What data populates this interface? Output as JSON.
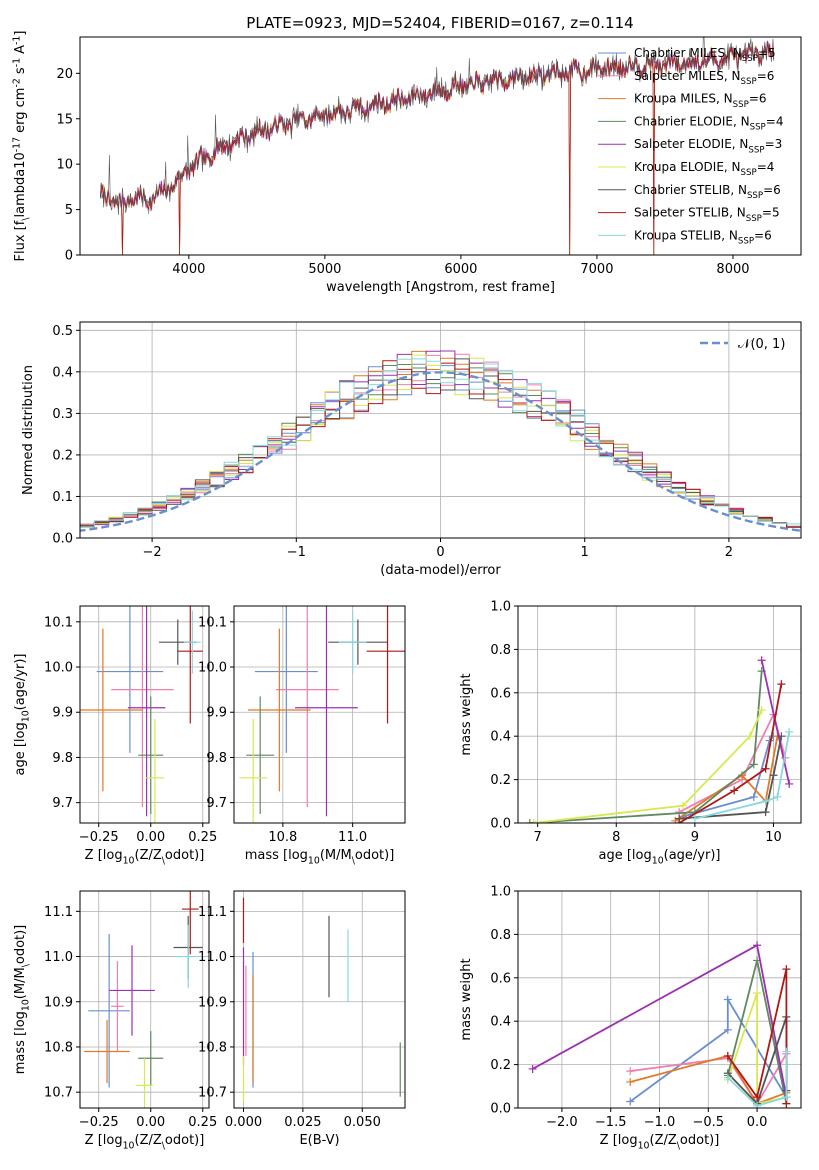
{
  "figure": {
    "suptitle": "PLATE=0923, MJD=52404, FIBERID=0167, z=0.114"
  },
  "models": [
    {
      "name": "Chabrier MILES, N$_{SSP}$=5",
      "label_html": "Chabrier MILES, N<sub>SSP</sub>=5",
      "color": "#6a8fd0"
    },
    {
      "name": "Salpeter MILES, N$_{SSP}$=6",
      "label_html": "Salpeter MILES, N<sub>SSP</sub>=6",
      "color": "#f07fb0"
    },
    {
      "name": "Kroupa MILES, N$_{SSP}$=6",
      "label_html": "Kroupa MILES, N<sub>SSP</sub>=6",
      "color": "#e07b28"
    },
    {
      "name": "Chabrier ELODIE, N$_{SSP}$=4",
      "label_html": "Chabrier ELODIE, N<sub>SSP</sub>=4",
      "color": "#5f8a5f"
    },
    {
      "name": "Salpeter ELODIE, N$_{SSP}$=3",
      "label_html": "Salpeter ELODIE, N<sub>SSP</sub>=3",
      "color": "#9b30b0"
    },
    {
      "name": "Kroupa ELODIE, N$_{SSP}$=4",
      "label_html": "Kroupa ELODIE, N<sub>SSP</sub>=4",
      "color": "#d8e850"
    },
    {
      "name": "Chabrier STELIB, N$_{SSP}$=6",
      "label_html": "Chabrier STELIB, N<sub>SSP</sub>=6",
      "color": "#555555"
    },
    {
      "name": "Salpeter STELIB, N$_{SSP}$=5",
      "label_html": "Salpeter STELIB, N<sub>SSP</sub>=5",
      "color": "#b01818"
    },
    {
      "name": "Kroupa STELIB, N$_{SSP}$=6",
      "label_html": "Kroupa STELIB, N<sub>SSP</sub>=6",
      "color": "#88d8e0"
    }
  ],
  "chart_data": [
    {
      "id": "spectrum",
      "type": "line",
      "title": "",
      "xlabel": "wavelength [Angstrom, rest frame]",
      "ylabel": "Flux [f$_\\lambda$10$^{-17}$ erg cm$^{-2}$ s$^{-1}$ A$^{-1}$]",
      "xlim": [
        3200,
        8500
      ],
      "ylim": [
        0,
        24
      ],
      "xticks": [
        4000,
        5000,
        6000,
        7000,
        8000
      ],
      "yticks": [
        0,
        5,
        10,
        15,
        20
      ],
      "grid": false,
      "legend": "upper right",
      "x_range": [
        3350,
        8300
      ],
      "anchors": [
        [
          3350,
          6.6
        ],
        [
          3500,
          5.6
        ],
        [
          3600,
          6.4
        ],
        [
          3700,
          6.0
        ],
        [
          3800,
          6.8
        ],
        [
          3900,
          8.0
        ],
        [
          4000,
          9.5
        ],
        [
          4200,
          11.5
        ],
        [
          4400,
          13.0
        ],
        [
          4600,
          14.0
        ],
        [
          4800,
          14.8
        ],
        [
          5000,
          15.4
        ],
        [
          5300,
          16.3
        ],
        [
          5600,
          17.3
        ],
        [
          6000,
          18.6
        ],
        [
          6400,
          19.5
        ],
        [
          6800,
          20.2
        ],
        [
          7200,
          20.8
        ],
        [
          7600,
          21.1
        ],
        [
          8000,
          21.7
        ],
        [
          8300,
          22.4
        ]
      ],
      "dips": [
        [
          3510,
          0
        ],
        [
          3930,
          0
        ],
        [
          6800,
          0
        ],
        [
          7420,
          0
        ]
      ]
    },
    {
      "id": "residuals",
      "type": "line",
      "title": "",
      "xlabel": "(data-model)/error",
      "ylabel": "Normed distribution",
      "xlim": [
        -2.5,
        2.5
      ],
      "ylim": [
        0,
        0.52
      ],
      "xticks": [
        -2,
        -1,
        0,
        1,
        2
      ],
      "yticks": [
        0.0,
        0.1,
        0.2,
        0.3,
        0.4,
        0.5
      ],
      "grid": true,
      "legend": "upper right",
      "reference": {
        "name": "$\\mathcal{N}(0,1)$",
        "label_html": "<tspan font-style=\"italic\">𝒩</tspan>(0, 1)",
        "color": "#6a8fd0",
        "mean": 0,
        "sigma": 1
      }
    },
    {
      "id": "age_vs_Z",
      "type": "scatter",
      "xlabel": "Z [log$_{10}$(Z/Z$_\\odot$)]",
      "ylabel": "age  [log$_{10}$(age/yr)]",
      "xlim": [
        -0.34,
        0.28
      ],
      "ylim": [
        9.655,
        10.135
      ],
      "xticks": [
        -0.25,
        0.0,
        0.25
      ],
      "yticks": [
        9.7,
        9.8,
        9.9,
        10.0,
        10.1
      ],
      "grid": true,
      "points": [
        {
          "model": 0,
          "x": -0.1,
          "xerr": 0.16,
          "y": 9.99,
          "yerr": 0.18
        },
        {
          "model": 1,
          "x": -0.04,
          "xerr": 0.15,
          "y": 9.95,
          "yerr": 0.26
        },
        {
          "model": 2,
          "x": -0.23,
          "xerr": 0.19,
          "y": 9.905,
          "yerr": 0.18
        },
        {
          "model": 3,
          "x": 0.0,
          "xerr": 0.06,
          "y": 9.805,
          "yerr": 0.13
        },
        {
          "model": 4,
          "x": -0.02,
          "xerr": 0.09,
          "y": 9.91,
          "yerr": 0.24
        },
        {
          "model": 5,
          "x": 0.02,
          "xerr": 0.045,
          "y": 9.755,
          "yerr": 0.13
        },
        {
          "model": 6,
          "x": 0.13,
          "xerr": 0.09,
          "y": 10.055,
          "yerr": 0.05
        },
        {
          "model": 7,
          "x": 0.19,
          "xerr": 0.06,
          "y": 10.035,
          "yerr": 0.16
        },
        {
          "model": 8,
          "x": 0.2,
          "xerr": 0.04,
          "y": 10.055,
          "yerr": 0.07
        }
      ]
    },
    {
      "id": "age_vs_mass",
      "type": "scatter",
      "xlabel": "mass [log$_{10}$(M/M$_\\odot$)]",
      "ylabel": "",
      "xlim": [
        10.66,
        11.15
      ],
      "ylim": [
        9.655,
        10.135
      ],
      "xticks": [
        10.8,
        11.0
      ],
      "yticks": [
        9.7,
        9.8,
        9.9,
        10.0,
        10.1
      ],
      "grid": true,
      "points": [
        {
          "model": 0,
          "x": 10.81,
          "xerr": 0.09,
          "y": 9.99,
          "yerr": 0.18
        },
        {
          "model": 1,
          "x": 10.87,
          "xerr": 0.09,
          "y": 9.95,
          "yerr": 0.26
        },
        {
          "model": 2,
          "x": 10.79,
          "xerr": 0.09,
          "y": 9.905,
          "yerr": 0.18
        },
        {
          "model": 3,
          "x": 10.735,
          "xerr": 0.04,
          "y": 9.805,
          "yerr": 0.13
        },
        {
          "model": 4,
          "x": 10.925,
          "xerr": 0.09,
          "y": 9.91,
          "yerr": 0.24
        },
        {
          "model": 5,
          "x": 10.715,
          "xerr": 0.04,
          "y": 9.755,
          "yerr": 0.13
        },
        {
          "model": 6,
          "x": 11.015,
          "xerr": 0.085,
          "y": 10.055,
          "yerr": 0.05
        },
        {
          "model": 7,
          "x": 11.1,
          "xerr": 0.06,
          "y": 10.035,
          "yerr": 0.16
        },
        {
          "model": 8,
          "x": 11.0,
          "xerr": 0.04,
          "y": 10.055,
          "yerr": 0.07
        }
      ]
    },
    {
      "id": "weight_vs_age",
      "type": "line",
      "xlabel": "age  [log$_{10}$(age/yr)]",
      "ylabel": "mass weight",
      "xlim": [
        6.75,
        10.35
      ],
      "ylim": [
        0.0,
        1.0
      ],
      "xticks": [
        7,
        8,
        9,
        10
      ],
      "yticks": [
        0.0,
        0.2,
        0.4,
        0.6,
        0.8,
        1.0
      ],
      "grid": true,
      "series": [
        {
          "model": 0,
          "x": [
            8.85,
            9.75,
            9.95,
            10.0
          ],
          "y": [
            0.03,
            0.12,
            0.38,
            0.4
          ]
        },
        {
          "model": 1,
          "x": [
            8.8,
            9.6,
            10.0,
            10.15
          ],
          "y": [
            0.05,
            0.2,
            0.5,
            0.3
          ]
        },
        {
          "model": 2,
          "x": [
            8.75,
            9.6,
            9.9,
            10.05
          ],
          "y": [
            0.01,
            0.22,
            0.1,
            0.4
          ]
        },
        {
          "model": 3,
          "x": [
            6.9,
            9.0,
            9.75,
            9.85
          ],
          "y": [
            0.0,
            0.05,
            0.27,
            0.7
          ]
        },
        {
          "model": 4,
          "x": [
            9.85,
            10.2
          ],
          "y": [
            0.75,
            0.18
          ]
        },
        {
          "model": 5,
          "x": [
            6.95,
            8.85,
            9.7,
            9.85
          ],
          "y": [
            0.0,
            0.08,
            0.4,
            0.52
          ]
        },
        {
          "model": 6,
          "x": [
            8.8,
            9.9,
            10.0,
            10.1
          ],
          "y": [
            0.02,
            0.05,
            0.22,
            0.4
          ]
        },
        {
          "model": 7,
          "x": [
            8.8,
            9.5,
            9.9,
            10.1
          ],
          "y": [
            0.0,
            0.15,
            0.25,
            0.64
          ]
        },
        {
          "model": 8,
          "x": [
            9.0,
            9.9,
            10.05,
            10.2
          ],
          "y": [
            0.02,
            0.1,
            0.12,
            0.42
          ]
        }
      ]
    },
    {
      "id": "mass_vs_Z",
      "type": "scatter",
      "xlabel": "Z [log$_{10}$(Z/Z$_\\odot$)]",
      "ylabel": "mass [log$_{10}$(M/M$_\\odot$)]",
      "xlim": [
        -0.34,
        0.28
      ],
      "ylim": [
        10.665,
        11.145
      ],
      "xticks": [
        -0.25,
        0.0,
        0.25
      ],
      "yticks": [
        10.7,
        10.8,
        10.9,
        11.0,
        11.1
      ],
      "grid": true,
      "points": [
        {
          "model": 0,
          "x": -0.2,
          "xerr": 0.1,
          "y": 10.88,
          "yerr": 0.17
        },
        {
          "model": 1,
          "x": -0.16,
          "xerr": 0.03,
          "y": 10.89,
          "yerr": 0.1
        },
        {
          "model": 2,
          "x": -0.21,
          "xerr": 0.11,
          "y": 10.79,
          "yerr": 0.07
        },
        {
          "model": 3,
          "x": 0.0,
          "xerr": 0.06,
          "y": 10.775,
          "yerr": 0.06
        },
        {
          "model": 4,
          "x": -0.09,
          "xerr": 0.11,
          "y": 10.925,
          "yerr": 0.1
        },
        {
          "model": 5,
          "x": -0.03,
          "xerr": 0.04,
          "y": 10.715,
          "yerr": 0.06
        },
        {
          "model": 6,
          "x": 0.18,
          "xerr": 0.07,
          "y": 11.02,
          "yerr": 0.07
        },
        {
          "model": 7,
          "x": 0.19,
          "xerr": 0.04,
          "y": 11.105,
          "yerr": 0.1
        },
        {
          "model": 8,
          "x": 0.18,
          "xerr": 0.06,
          "y": 11.0,
          "yerr": 0.07
        }
      ]
    },
    {
      "id": "mass_vs_EBV",
      "type": "scatter",
      "xlabel": "E(B-V)",
      "ylabel": "",
      "xlim": [
        -0.004,
        0.068
      ],
      "ylim": [
        10.665,
        11.145
      ],
      "xticks": [
        0.0,
        0.025,
        0.05
      ],
      "yticks": [
        10.7,
        10.8,
        10.9,
        11.0,
        11.1
      ],
      "xtick_labels": [
        "0.000",
        "0.025",
        "0.050"
      ],
      "grid": true,
      "points": [
        {
          "model": 0,
          "x": 0.004,
          "xerr": 0,
          "y": 10.86,
          "yerr": 0.15
        },
        {
          "model": 1,
          "x": 0.001,
          "xerr": 0,
          "y": 10.88,
          "yerr": 0.1
        },
        {
          "model": 2,
          "x": 0.004,
          "xerr": 0,
          "y": 10.84,
          "yerr": 0.12
        },
        {
          "model": 3,
          "x": 0.066,
          "xerr": 0,
          "y": 10.75,
          "yerr": 0.06
        },
        {
          "model": 4,
          "x": 0.0,
          "xerr": 0,
          "y": 10.89,
          "yerr": 0.13
        },
        {
          "model": 5,
          "x": 0.0,
          "xerr": 0,
          "y": 10.73,
          "yerr": 0.05
        },
        {
          "model": 6,
          "x": 0.036,
          "xerr": 0,
          "y": 11.0,
          "yerr": 0.09
        },
        {
          "model": 7,
          "x": 0.0,
          "xerr": 0,
          "y": 11.08,
          "yerr": 0.05
        },
        {
          "model": 8,
          "x": 0.044,
          "xerr": 0,
          "y": 10.98,
          "yerr": 0.08
        }
      ]
    },
    {
      "id": "weight_vs_Z",
      "type": "line",
      "xlabel": "Z [log$_{10}$(Z/Z$_\\odot$)]",
      "ylabel": "mass weight",
      "xlim": [
        -2.45,
        0.45
      ],
      "ylim": [
        0.0,
        1.0
      ],
      "xticks": [
        -2.0,
        -1.5,
        -1.0,
        -0.5,
        0.0
      ],
      "yticks": [
        0.0,
        0.2,
        0.4,
        0.6,
        0.8,
        1.0
      ],
      "grid": true,
      "series": [
        {
          "model": 0,
          "x": [
            -1.3,
            -0.3,
            -0.3,
            0.3,
            0.3
          ],
          "y": [
            0.03,
            0.36,
            0.5,
            0.05,
            0.4
          ]
        },
        {
          "model": 1,
          "x": [
            -1.3,
            -0.3,
            0.0,
            0.3
          ],
          "y": [
            0.17,
            0.23,
            0.02,
            0.25
          ]
        },
        {
          "model": 2,
          "x": [
            -1.3,
            -0.3,
            0.0,
            0.3
          ],
          "y": [
            0.12,
            0.24,
            0.02,
            0.07
          ]
        },
        {
          "model": 3,
          "x": [
            -0.3,
            0.0,
            0.3
          ],
          "y": [
            0.15,
            0.68,
            0.02
          ]
        },
        {
          "model": 4,
          "x": [
            -2.3,
            0.0,
            0.3
          ],
          "y": [
            0.18,
            0.75,
            0.05
          ]
        },
        {
          "model": 5,
          "x": [
            -0.3,
            0.0,
            0.0,
            0.3
          ],
          "y": [
            0.13,
            0.53,
            0.02,
            0.05
          ]
        },
        {
          "model": 6,
          "x": [
            -0.3,
            0.0,
            0.3,
            0.3
          ],
          "y": [
            0.16,
            0.02,
            0.42,
            0.08
          ]
        },
        {
          "model": 7,
          "x": [
            -0.3,
            0.0,
            0.3,
            0.3
          ],
          "y": [
            0.24,
            0.05,
            0.64,
            0.02
          ]
        },
        {
          "model": 8,
          "x": [
            -0.3,
            0.0,
            0.3,
            0.3
          ],
          "y": [
            0.14,
            0.01,
            0.05,
            0.26
          ]
        }
      ]
    }
  ]
}
